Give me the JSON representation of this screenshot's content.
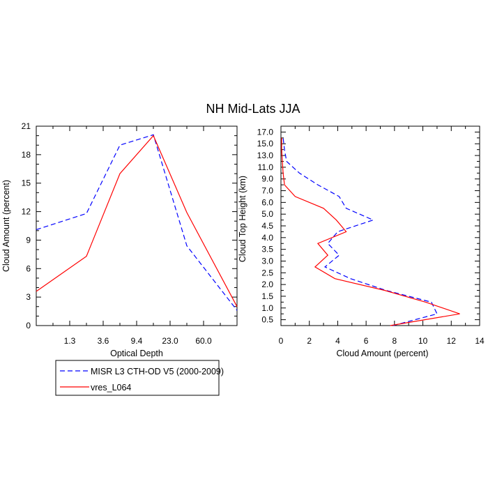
{
  "title": "NH Mid-Lats JJA",
  "legend": {
    "placement": "bottom-left",
    "entries": [
      {
        "label": "MISR L3 CTH-OD V5 (2000-2009)",
        "color": "#0000ff",
        "style": "dashed"
      },
      {
        "label": "vres_L064",
        "color": "#ff0000",
        "style": "solid"
      }
    ]
  },
  "chart_data": [
    {
      "type": "line",
      "xlabel": "Optical Depth",
      "ylabel": "Cloud Amount (percent)",
      "x_tick_labels": [
        "1.3",
        "3.6",
        "9.4",
        "23.0",
        "60.0"
      ],
      "y_ticks": [
        0,
        3,
        6,
        9,
        12,
        15,
        18,
        21
      ],
      "ylim": [
        0,
        21
      ],
      "x_index_range": [
        0,
        6
      ],
      "grid": false,
      "x": [
        0,
        1,
        2,
        3,
        4,
        5,
        6
      ],
      "series": [
        {
          "name": "MISR L3 CTH-OD V5 (2000-2009)",
          "color": "#0000ff",
          "style": "dashed",
          "values": [
            10.1,
            11.8,
            19.0,
            20.1,
            8.4,
            1.6,
            null
          ]
        },
        {
          "name": "vres_L064",
          "color": "#ff0000",
          "style": "solid",
          "values": [
            3.6,
            7.3,
            16.0,
            20.0,
            11.9,
            2.0,
            null
          ]
        }
      ],
      "point_x": [
        0,
        1,
        2,
        3,
        4,
        5
      ],
      "point_x_offset": 0.5
    },
    {
      "type": "line",
      "xlabel": "Cloud Amount (percent)",
      "ylabel": "Cloud Top Height (km)",
      "x_ticks": [
        0,
        2,
        4,
        6,
        8,
        10,
        12,
        14
      ],
      "xlim": [
        0,
        14
      ],
      "y_tick_labels": [
        "0.5",
        "1.0",
        "1.5",
        "2.0",
        "2.5",
        "3.0",
        "3.5",
        "4.0",
        "4.5",
        "5.0",
        "6.0",
        "7.0",
        "9.0",
        "11.0",
        "13.0",
        "15.0",
        "17.0"
      ],
      "y_index_range": [
        -0.5,
        16.5
      ],
      "grid": false,
      "series": [
        {
          "name": "MISR L3 CTH-OD V5 (2000-2009)",
          "color": "#0000ff",
          "style": "dashed",
          "levels": [
            -0.5,
            0.5,
            1.5,
            2.5,
            3.5,
            4.5,
            5.5,
            6.5,
            7.5,
            8.5,
            9.5,
            10.5,
            11.5,
            12.5,
            13.5,
            14.5,
            15.5,
            16.5
          ],
          "values": [
            7.9,
            11.0,
            10.6,
            7.4,
            4.9,
            3.1,
            4.1,
            3.3,
            4.0,
            6.5,
            4.6,
            4.1,
            2.6,
            1.3,
            0.4,
            0.25,
            0.15
          ]
        },
        {
          "name": "vres_L064",
          "color": "#ff0000",
          "style": "solid",
          "levels": [
            -0.5,
            0.5,
            1.5,
            2.5,
            3.5,
            4.5,
            5.5,
            6.5,
            7.5,
            8.5,
            9.5,
            10.5,
            11.5,
            12.5,
            13.5,
            14.5,
            15.5,
            16.5
          ],
          "values": [
            7.7,
            12.6,
            10.2,
            7.3,
            3.8,
            2.4,
            3.3,
            2.6,
            4.6,
            3.9,
            3.0,
            1.0,
            0.25,
            0.15,
            0.1,
            0.05,
            0.05
          ]
        }
      ]
    }
  ]
}
